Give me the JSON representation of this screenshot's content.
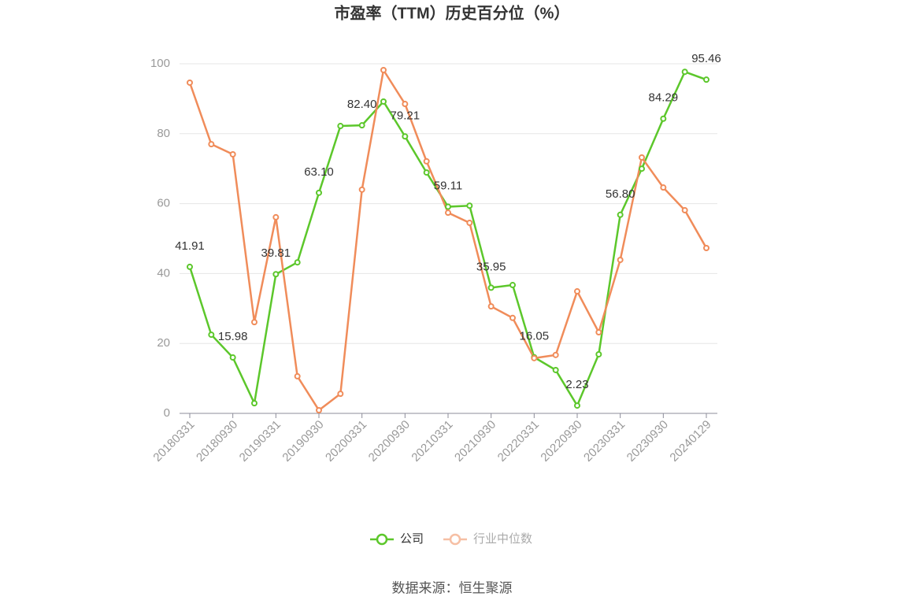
{
  "chart_data": {
    "type": "line",
    "title": "市盈率（TTM）历史百分位（%）",
    "categories": [
      "20180331",
      null,
      "20180930",
      null,
      "20190331",
      null,
      "20190930",
      null,
      "20200331",
      null,
      "20200930",
      null,
      "20210331",
      null,
      "20210930",
      null,
      "20220331",
      null,
      "20220930",
      null,
      "20230331",
      null,
      "20230930",
      null,
      "20240129"
    ],
    "series": [
      {
        "name": "公司",
        "color": "#5cc72b",
        "values": [
          41.91,
          22.5,
          15.98,
          2.9,
          39.81,
          43.2,
          63.1,
          82.2,
          82.4,
          89.2,
          79.21,
          68.9,
          59.11,
          59.4,
          35.95,
          36.7,
          16.05,
          12.4,
          2.23,
          16.9,
          56.8,
          70.0,
          84.29,
          97.7,
          95.46
        ],
        "value_labels": [
          "41.91",
          null,
          "15.98",
          null,
          "39.81",
          null,
          "63.10",
          null,
          "82.40",
          null,
          "79.21",
          null,
          "59.11",
          null,
          "35.95",
          null,
          "16.05",
          null,
          "2.23",
          null,
          "56.80",
          null,
          "84.29",
          null,
          "95.46"
        ]
      },
      {
        "name": "行业中位数",
        "color": "#f08c5a",
        "values": [
          94.6,
          77.0,
          74.1,
          26.1,
          56.1,
          10.6,
          0.9,
          5.6,
          64.0,
          98.2,
          88.5,
          72.1,
          57.4,
          54.5,
          30.6,
          27.3,
          15.8,
          16.7,
          34.9,
          23.2,
          43.9,
          73.2,
          64.6,
          58.1,
          47.3
        ]
      }
    ],
    "ylim": [
      0,
      100
    ],
    "yticks": [
      0,
      20,
      40,
      60,
      80,
      100
    ],
    "grid": true,
    "legend": "bottom",
    "source": "数据来源：恒生聚源"
  }
}
